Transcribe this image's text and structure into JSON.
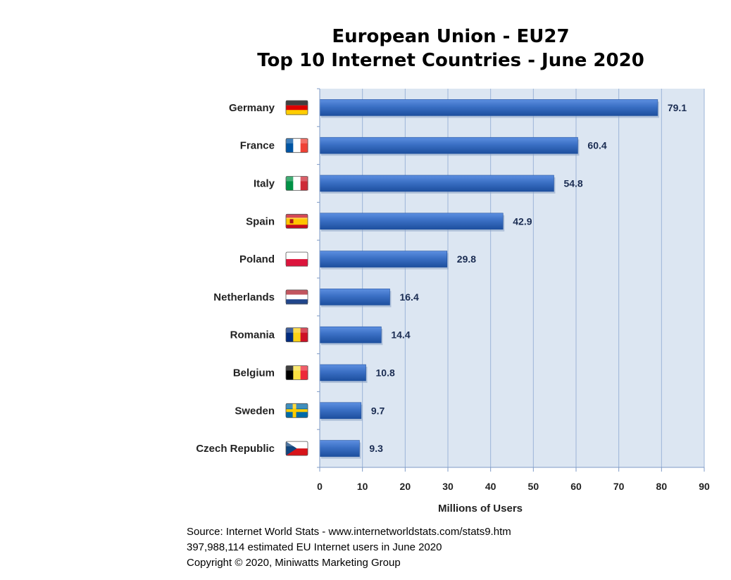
{
  "chart_data": {
    "type": "bar",
    "orientation": "horizontal",
    "title": "European Union - EU27",
    "subtitle": "Top 10 Internet Countries - June 2020",
    "categories": [
      "Germany",
      "France",
      "Italy",
      "Spain",
      "Poland",
      "Netherlands",
      "Romania",
      "Belgium",
      "Sweden",
      "Czech Republic"
    ],
    "values": [
      79.1,
      60.4,
      54.8,
      42.9,
      29.8,
      16.4,
      14.4,
      10.8,
      9.7,
      9.3
    ],
    "value_labels": [
      "79.1",
      "60.4",
      "54.8",
      "42.9",
      "29.8",
      "16.4",
      "14.4",
      "10.8",
      "9.7",
      "9.3"
    ],
    "xlabel": "Millions of Users",
    "ylabel": "",
    "xlim": [
      0,
      90
    ],
    "ticks": [
      "0",
      "10",
      "20",
      "30",
      "40",
      "50",
      "60",
      "70",
      "80",
      "90"
    ],
    "grid": true,
    "flag_icons": [
      "germany-flag-icon",
      "france-flag-icon",
      "italy-flag-icon",
      "spain-flag-icon",
      "poland-flag-icon",
      "netherlands-flag-icon",
      "romania-flag-icon",
      "belgium-flag-icon",
      "sweden-flag-icon",
      "czech-republic-flag-icon"
    ]
  },
  "source": {
    "line1": "Source: Internet World Stats  -  www.internetworldstats.com/stats9.htm",
    "line2": "397,988,114 estimated EU Internet users in June 2020",
    "line3": "Copyright © 2020, Miniwatts Marketing Group"
  },
  "colors": {
    "plot_background": "#dce6f2",
    "grid": "#9cb4d8",
    "bar": "#2e63b8",
    "value_text": "#1a2c52"
  }
}
